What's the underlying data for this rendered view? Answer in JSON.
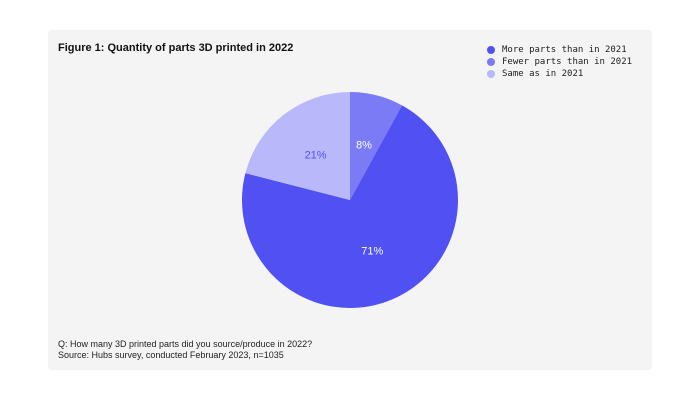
{
  "chart_data": {
    "type": "pie",
    "title": "Figure 1: Quantity of parts 3D printed in 2022",
    "categories": [
      "More parts than in 2021",
      "Fewer parts than in 2021",
      "Same as in 2021"
    ],
    "values": [
      71,
      8,
      21
    ],
    "data_labels": [
      "71%",
      "8%",
      "21%"
    ],
    "colors": [
      "#5151f3",
      "#7b7bf5",
      "#b8b8fb"
    ],
    "label_colors": [
      "#ffffff",
      "#ffffff",
      "#5151f3"
    ],
    "legend_position": "top-right"
  },
  "note": {
    "question": "Q: How many 3D printed parts did you source/produce in 2022?",
    "source": "Source: Hubs survey, conducted February 2023, n=1035"
  }
}
